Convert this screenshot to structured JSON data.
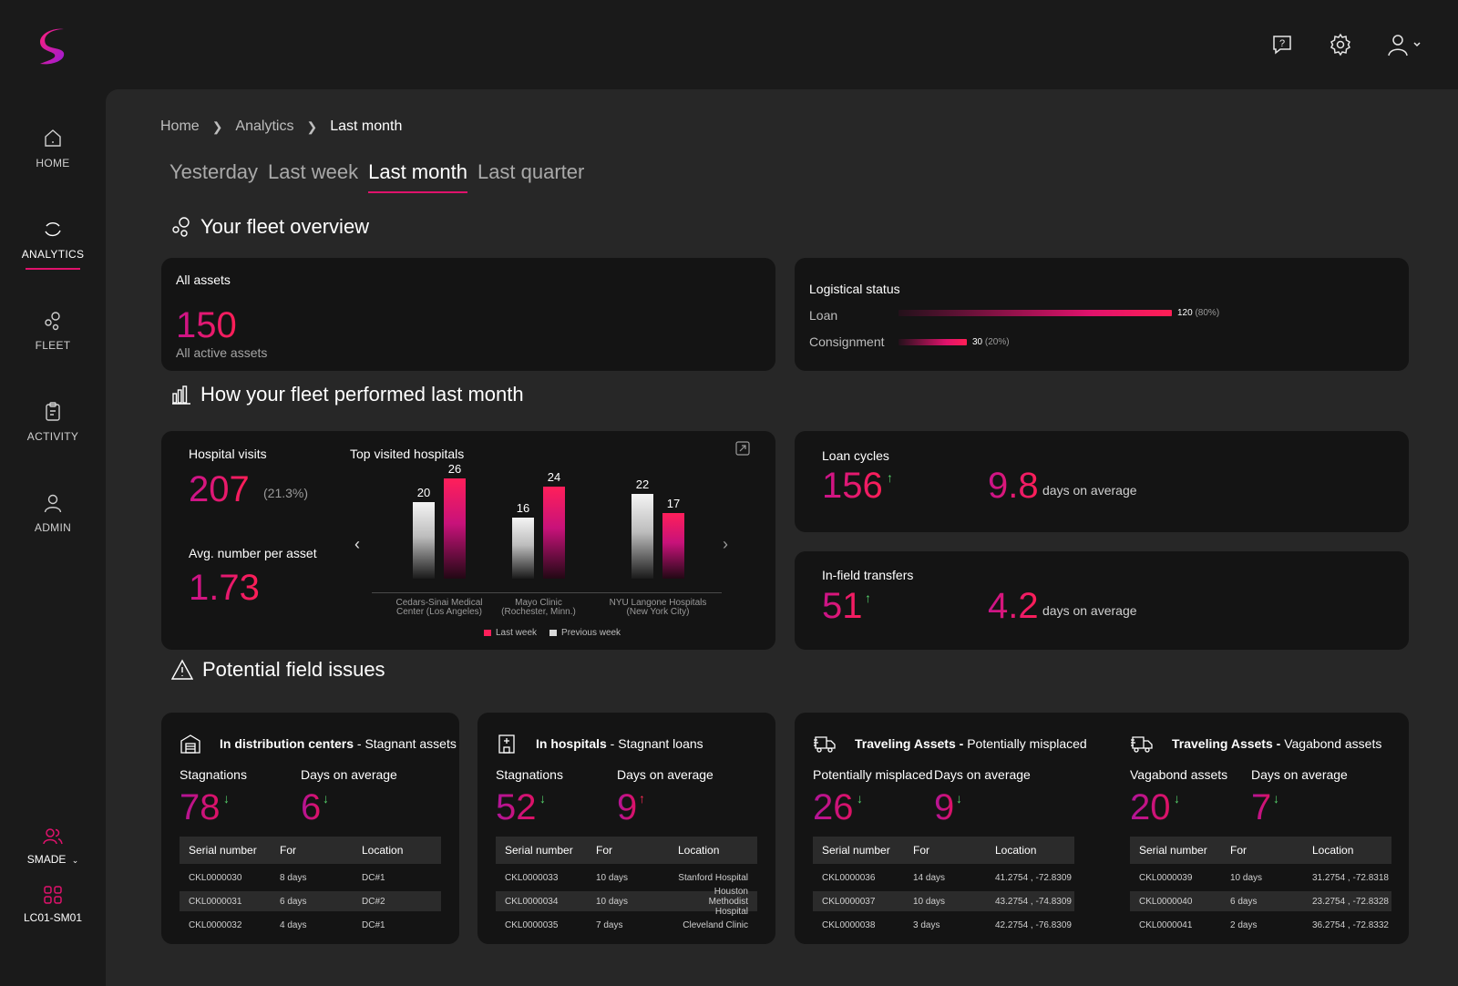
{
  "nav": {
    "items": [
      {
        "label": "HOME",
        "icon": "home-icon"
      },
      {
        "label": "ANALYTICS",
        "icon": "analytics-icon"
      },
      {
        "label": "FLEET",
        "icon": "fleet-icon"
      },
      {
        "label": "ACTIVITY",
        "icon": "activity-icon"
      },
      {
        "label": "ADMIN",
        "icon": "admin-icon"
      }
    ],
    "org": "SMADE",
    "device": "LC01-SM01"
  },
  "breadcrumb": {
    "home": "Home",
    "analytics": "Analytics",
    "current": "Last month"
  },
  "tabs": [
    "Yesterday",
    "Last week",
    "Last month",
    "Last quarter"
  ],
  "overview": {
    "title": "Your fleet overview",
    "all_assets_label": "All assets",
    "all_assets_value": "150",
    "all_assets_sub": "All active assets",
    "logistics_title": "Logistical status",
    "loan_label": "Loan",
    "loan_value": "120",
    "loan_pct": "(80%)",
    "loan_fraction": 0.8,
    "consignment_label": "Consignment",
    "consignment_value": "30",
    "consignment_pct": "(20%)",
    "consignment_fraction": 0.2
  },
  "performance": {
    "title": "How your fleet performed last month",
    "hospital_visits_label": "Hospital visits",
    "hospital_visits_value": "207",
    "hospital_visits_pct": "(21.3%)",
    "avg_label": "Avg. number per asset",
    "avg_value": "1.73",
    "chart_title": "Top visited hospitals",
    "loan_cycles_label": "Loan cycles",
    "loan_cycles_value": "156",
    "loan_cycles_avg": "9.8",
    "days_on_average": "days on average",
    "transfers_label": "In-field transfers",
    "transfers_value": "51",
    "transfers_avg": "4.2",
    "up_arrow": "↑"
  },
  "chart_data": {
    "type": "bar",
    "title": "Top visited hospitals",
    "categories": [
      [
        "Cedars-Sinai Medical",
        "Center (Los Angeles)"
      ],
      [
        "Mayo Clinic",
        "(Rochester, Minn.)"
      ],
      [
        "NYU Langone Hospitals",
        "(New York City)"
      ]
    ],
    "series": [
      {
        "name": "Previous week",
        "values": [
          20,
          16,
          22
        ],
        "color": "#d9d9d9"
      },
      {
        "name": "Last week",
        "values": [
          26,
          24,
          17
        ],
        "color": "#ff1f5a"
      }
    ],
    "ylim": [
      0,
      28
    ],
    "legend": "bottom"
  },
  "issues": {
    "title": "Potential field issues",
    "headers": {
      "serial": "Serial number",
      "for": "For",
      "location": "Location"
    },
    "cards": [
      {
        "bold": "In distribution centers",
        "rest": " - Stagnant assets",
        "icon": "warehouse-icon",
        "stat1_label": "Stagnations",
        "stat1_value": "78",
        "stat1_arrow": "↓",
        "stat2_label": "Days on average",
        "stat2_value": "6",
        "stat2_arrow": "↓",
        "rows": [
          {
            "serial": "CKL0000030",
            "for": "8 days",
            "location": "DC#1"
          },
          {
            "serial": "CKL0000031",
            "for": "6 days",
            "location": "DC#2"
          },
          {
            "serial": "CKL0000032",
            "for": "4 days",
            "location": "DC#1"
          }
        ]
      },
      {
        "bold": "In hospitals",
        "rest": " - Stagnant loans",
        "icon": "hospital-icon",
        "stat1_label": "Stagnations",
        "stat1_value": "52",
        "stat1_arrow": "↓",
        "stat2_label": "Days on average",
        "stat2_value": "9",
        "stat2_arrow": "↑",
        "rows": [
          {
            "serial": "CKL0000033",
            "for": "10 days",
            "location": "Stanford Hospital"
          },
          {
            "serial": "CKL0000034",
            "for": "10 days",
            "location": "Houston Methodist Hospital"
          },
          {
            "serial": "CKL0000035",
            "for": "7 days",
            "location": "Cleveland Clinic"
          }
        ]
      },
      {
        "bold": "Traveling Assets -",
        "rest": " Potentially misplaced",
        "icon": "truck-icon",
        "stat1_label": "Potentially misplaced",
        "stat1_value": "26",
        "stat1_arrow": "↓",
        "stat2_label": "Days on average",
        "stat2_value": "9",
        "stat2_arrow": "↓",
        "rows": [
          {
            "serial": "CKL0000036",
            "for": "14 days",
            "location": "41.2754 , -72.8309"
          },
          {
            "serial": "CKL0000037",
            "for": "10 days",
            "location": "43.2754 , -74.8309"
          },
          {
            "serial": "CKL0000038",
            "for": "3 days",
            "location": "42.2754 , -76.8309"
          }
        ]
      },
      {
        "bold": "Traveling Assets -",
        "rest": " Vagabond assets",
        "icon": "truck-icon",
        "stat1_label": "Vagabond assets",
        "stat1_value": "20",
        "stat1_arrow": "↓",
        "stat2_label": "Days on average",
        "stat2_value": "7",
        "stat2_arrow": "↓",
        "rows": [
          {
            "serial": "CKL0000039",
            "for": "10 days",
            "location": "31.2754 , -72.8318"
          },
          {
            "serial": "CKL0000040",
            "for": "6 days",
            "location": "23.2754 , -72.8328"
          },
          {
            "serial": "CKL0000041",
            "for": "2 days",
            "location": "36.2754 , -72.8332"
          }
        ]
      }
    ]
  }
}
